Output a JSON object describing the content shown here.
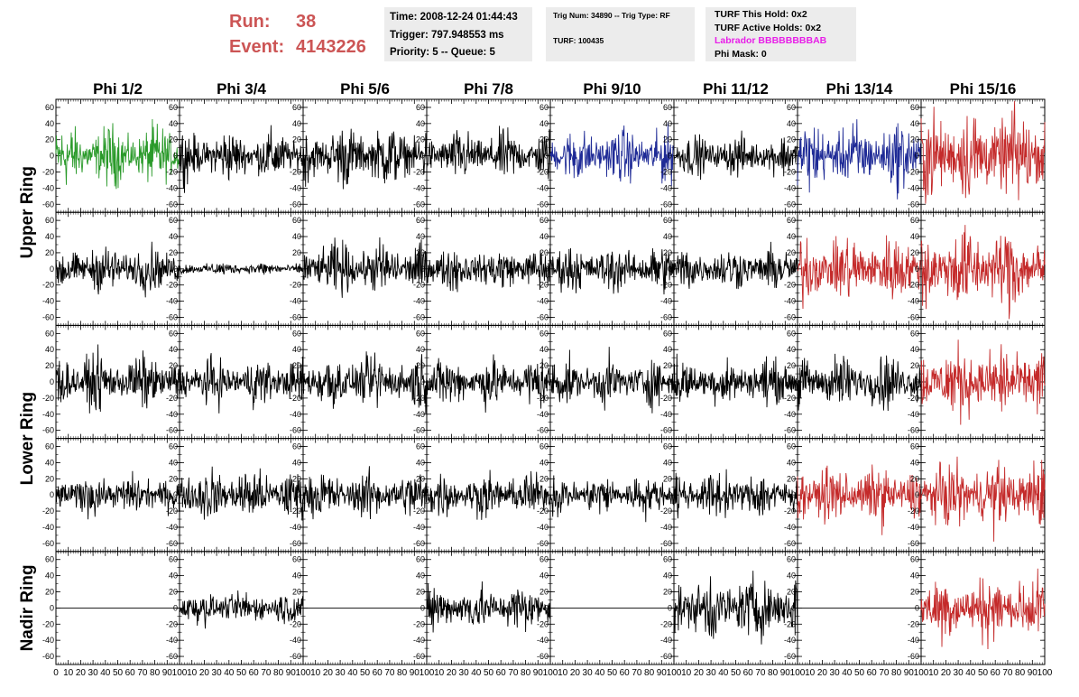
{
  "run": {
    "label": "Run:",
    "value": "38"
  },
  "event": {
    "label": "Event:",
    "value": "4143226"
  },
  "time_box": {
    "time": "Time: 2008-12-24 01:44:43",
    "trigger": "Trigger: 797.948553 ms",
    "priority": "Priority: 5 -- Queue: 5"
  },
  "trig_box": {
    "trig": "Trig Num: 34890 -- Trig Type: RF",
    "turf": "TURF: 100435"
  },
  "turf_box": {
    "hold": "TURF This Hold: 0x2",
    "active": "TURF Active Holds: 0x2",
    "labrador": "Labrador BBBBBBBBAB",
    "mask": "Phi Mask: 0"
  },
  "colors": {
    "black": "#000000",
    "green": "#2a9a2a",
    "blue": "#1e2a96",
    "red": "#c42a2a",
    "run_text": "#cc5555",
    "labrador_text": "#e81ee8",
    "info_bg": "#ececec"
  },
  "chart_data": {
    "type": "line",
    "columns": [
      "Phi 1/2",
      "Phi 3/4",
      "Phi 5/6",
      "Phi 7/8",
      "Phi 9/10",
      "Phi 11/12",
      "Phi 13/14",
      "Phi 15/16"
    ],
    "rows": [
      "Upper Ring",
      "Upper Ring",
      "Lower Ring",
      "Lower Ring",
      "Nadir Ring"
    ],
    "row_labels": [
      {
        "text": "Upper Ring",
        "rows": [
          0,
          1
        ]
      },
      {
        "text": "Lower Ring",
        "rows": [
          2,
          3
        ]
      },
      {
        "text": "Nadir Ring",
        "rows": [
          4
        ]
      }
    ],
    "xlim": [
      0,
      100
    ],
    "ylim": [
      -70,
      70
    ],
    "yticks": [
      -60,
      -40,
      -20,
      0,
      20,
      40,
      60
    ],
    "xticks": [
      0,
      10,
      20,
      30,
      40,
      50,
      60,
      70,
      80,
      90,
      100
    ],
    "x_tick_labels_first": [
      "0",
      "10",
      "20",
      "30",
      "40",
      "50",
      "60",
      "70",
      "80",
      "90",
      "100"
    ],
    "x_tick_labels_other": [
      "10",
      "20",
      "30",
      "40",
      "50",
      "60",
      "70",
      "80",
      "90",
      "100"
    ],
    "panel_colors": [
      [
        "green",
        "black",
        "black",
        "black",
        "blue",
        "black",
        "blue",
        "red"
      ],
      [
        "black",
        "black",
        "black",
        "black",
        "black",
        "black",
        "red",
        "red"
      ],
      [
        "black",
        "black",
        "black",
        "black",
        "black",
        "black",
        "black",
        "red"
      ],
      [
        "black",
        "black",
        "black",
        "black",
        "black",
        "black",
        "red",
        "red"
      ],
      [
        "black",
        "black",
        "black",
        "black",
        "black",
        "black",
        "black",
        "red"
      ]
    ],
    "panel_amplitude": [
      [
        18,
        15,
        18,
        15,
        16,
        12,
        20,
        28
      ],
      [
        14,
        4,
        16,
        13,
        14,
        13,
        20,
        25
      ],
      [
        16,
        14,
        16,
        15,
        14,
        14,
        16,
        22
      ],
      [
        12,
        16,
        14,
        13,
        12,
        14,
        17,
        20
      ],
      [
        0,
        10,
        0,
        14,
        0,
        20,
        0,
        20
      ]
    ]
  }
}
